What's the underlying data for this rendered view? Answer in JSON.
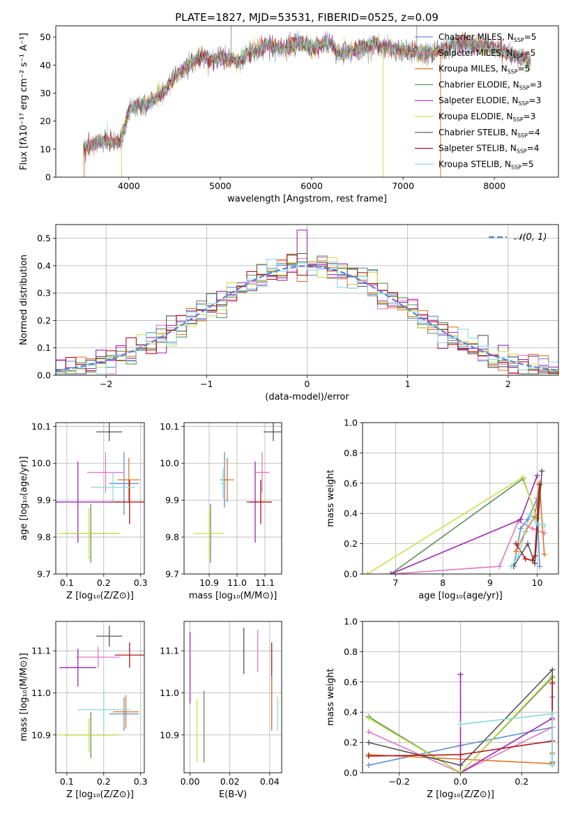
{
  "title": "PLATE=1827, MJD=53531, FIBERID=0525, z=0.09",
  "series": [
    {
      "id": "chabrier_miles",
      "color": "#5b8fd6"
    },
    {
      "id": "salpeter_miles",
      "color": "#e377c2"
    },
    {
      "id": "kroupa_miles",
      "color": "#e0741c"
    },
    {
      "id": "chabrier_elodie",
      "color": "#5e8e5e"
    },
    {
      "id": "salpeter_elodie",
      "color": "#9a27b0"
    },
    {
      "id": "kroupa_elodie",
      "color": "#c8e04a"
    },
    {
      "id": "chabrier_stelib",
      "color": "#555555"
    },
    {
      "id": "salpeter_stelib",
      "color": "#b0141a"
    },
    {
      "id": "kroupa_stelib",
      "color": "#8ad8e0"
    }
  ],
  "chart_data": [
    {
      "id": "spectrum",
      "type": "line",
      "xlabel": "wavelength [Angstrom, rest frame]",
      "ylabel": "Flux [fλ10⁻¹⁷ erg cm⁻² s⁻¹ A⁻¹]",
      "xlim": [
        3200,
        8700
      ],
      "ylim": [
        0,
        54
      ],
      "xticks": [
        "4000",
        "5000",
        "6000",
        "7000",
        "8000"
      ],
      "yticks": [
        "0",
        "10",
        "20",
        "30",
        "40",
        "50"
      ],
      "grid": false,
      "legend_position": "top-right",
      "legend": [
        "Chabrier MILES, N_SSP=5",
        "Salpeter MILES, N_SSP=5",
        "Kroupa MILES, N_SSP=5",
        "Chabrier ELODIE, N_SSP=3",
        "Salpeter ELODIE, N_SSP=3",
        "Kroupa ELODIE, N_SSP=3",
        "Chabrier STELIB, N_SSP=4",
        "Salpeter STELIB, N_SSP=4",
        "Kroupa STELIB, N_SSP=5"
      ],
      "continuum": {
        "x": [
          3500,
          3700,
          3800,
          3900,
          3950,
          4000,
          4100,
          4200,
          4300,
          4400,
          4500,
          4700,
          4800,
          4900,
          5000,
          5100,
          5200,
          5300,
          5400,
          5500,
          5700,
          5850,
          6000,
          6200,
          6300,
          6500,
          6700,
          6900,
          7000,
          7200,
          7400,
          7600,
          7800,
          8000,
          8100,
          8250,
          8400
        ],
        "y": [
          10,
          13,
          13,
          12,
          17,
          24,
          26,
          26,
          28,
          31,
          36,
          41,
          43,
          42,
          43,
          42,
          41,
          44,
          45,
          47,
          46,
          48,
          46,
          48,
          44,
          46,
          47,
          46,
          45,
          44,
          45,
          48,
          47,
          46,
          45,
          43,
          41
        ]
      },
      "dips": [
        {
          "series": "kroupa_miles",
          "x": 3510,
          "y": 0
        },
        {
          "series": "kroupa_elodie",
          "x": 3920,
          "y": 0
        },
        {
          "series": "kroupa_elodie",
          "x": 6780,
          "y": 0
        },
        {
          "series": "kroupa_miles",
          "x": 7410,
          "y": 0
        }
      ],
      "spikes": [
        {
          "x": 5120,
          "y": 54
        },
        {
          "x": 7150,
          "y": 54
        }
      ]
    },
    {
      "id": "residuals",
      "type": "histogram",
      "xlabel": "(data-model)/error",
      "ylabel": "Normed distribution",
      "xlim": [
        -2.5,
        2.5
      ],
      "ylim": [
        0,
        0.55
      ],
      "xticks": [
        "−2",
        "−1",
        "0",
        "1",
        "2"
      ],
      "yticks": [
        "0.0",
        "0.1",
        "0.2",
        "0.3",
        "0.4",
        "0.5"
      ],
      "grid": true,
      "bin_width": 0.1,
      "legend_position": "top-right",
      "legend": [
        "𝒩(0, 1)"
      ],
      "reference_curve": "gaussian N(0,1)",
      "spike": {
        "x": -0.05,
        "y": 0.53
      }
    },
    {
      "id": "age_vs_Z",
      "type": "errorbar",
      "xlabel": "Z [log₁₀(Z/Z⊙)]",
      "ylabel": "age  [log₁₀(age/yr)]",
      "xlim": [
        0.07,
        0.31
      ],
      "ylim": [
        9.7,
        10.11
      ],
      "xticks": [
        "0.1",
        "0.2",
        "0.3"
      ],
      "yticks": [
        "9.7",
        "9.8",
        "9.9",
        "10.0",
        "10.1"
      ],
      "grid": true,
      "points": [
        {
          "series": "chabrier_miles",
          "x": 0.255,
          "xerr": 0.04,
          "y": 9.945,
          "yerr": 0.085
        },
        {
          "series": "salpeter_miles",
          "x": 0.205,
          "xerr": 0.05,
          "y": 9.975,
          "yerr": 0.055
        },
        {
          "series": "kroupa_miles",
          "x": 0.268,
          "xerr": 0.03,
          "y": 9.955,
          "yerr": 0.06
        },
        {
          "series": "chabrier_elodie",
          "x": 0.165,
          "xerr": 0.075,
          "y": 9.81,
          "yerr": 0.08
        },
        {
          "series": "salpeter_elodie",
          "x": 0.13,
          "xerr": 0.11,
          "y": 9.895,
          "yerr": 0.11
        },
        {
          "series": "kroupa_elodie",
          "x": 0.16,
          "xerr": 0.085,
          "y": 9.81,
          "yerr": 0.07
        },
        {
          "series": "chabrier_stelib",
          "x": 0.215,
          "xerr": 0.035,
          "y": 10.085,
          "yerr": 0.025
        },
        {
          "series": "salpeter_stelib",
          "x": 0.27,
          "xerr": 0.05,
          "y": 9.895,
          "yerr": 0.06
        },
        {
          "series": "kroupa_stelib",
          "x": 0.225,
          "xerr": 0.06,
          "y": 9.935,
          "yerr": 0.04
        }
      ]
    },
    {
      "id": "age_vs_mass",
      "type": "errorbar",
      "xlabel": "mass [log₁₀(M/M⊙)]",
      "ylabel": "",
      "xlim": [
        10.81,
        11.16
      ],
      "ylim": [
        9.7,
        10.11
      ],
      "xticks": [
        "10.9",
        "11.0",
        "11.1"
      ],
      "yticks": [
        "9.7",
        "9.8",
        "9.9",
        "10.0",
        "10.1"
      ],
      "grid": true,
      "points": [
        {
          "series": "chabrier_miles",
          "x": 10.955,
          "xerr": 0.005,
          "y": 9.955,
          "yerr": 0.075
        },
        {
          "series": "salpeter_miles",
          "x": 11.09,
          "xerr": 0.025,
          "y": 9.975,
          "yerr": 0.055
        },
        {
          "series": "kroupa_miles",
          "x": 10.965,
          "xerr": 0.025,
          "y": 9.955,
          "yerr": 0.06
        },
        {
          "series": "chabrier_elodie",
          "x": 10.905,
          "xerr": 0.005,
          "y": 9.81,
          "yerr": 0.08
        },
        {
          "series": "salpeter_elodie",
          "x": 11.065,
          "xerr": 0.03,
          "y": 9.895,
          "yerr": 0.11
        },
        {
          "series": "kroupa_elodie",
          "x": 10.9,
          "xerr": 0.055,
          "y": 9.81,
          "yerr": 0.07
        },
        {
          "series": "chabrier_stelib",
          "x": 11.13,
          "xerr": 0.035,
          "y": 10.085,
          "yerr": 0.025
        },
        {
          "series": "salpeter_stelib",
          "x": 11.085,
          "xerr": 0.04,
          "y": 9.895,
          "yerr": 0.06
        },
        {
          "series": "kroupa_stelib",
          "x": 10.95,
          "xerr": 0.01,
          "y": 9.945,
          "yerr": 0.04
        }
      ]
    },
    {
      "id": "weight_vs_age",
      "type": "line",
      "xlabel": "age  [log₁₀(age/yr)]",
      "ylabel": "mass weight",
      "xlim": [
        6.3,
        10.45
      ],
      "ylim": [
        0,
        1.0
      ],
      "xticks": [
        "7",
        "8",
        "9",
        "10"
      ],
      "yticks": [
        "0.0",
        "0.2",
        "0.4",
        "0.6",
        "0.8",
        "1.0"
      ],
      "grid": true,
      "series": [
        {
          "series": "chabrier_miles",
          "x": [
            9.5,
            9.65,
            9.8,
            10.0,
            10.05
          ],
          "y": [
            0.05,
            0.3,
            0.36,
            0.5,
            0.05
          ]
        },
        {
          "series": "salpeter_miles",
          "x": [
            6.9,
            9.2,
            9.6,
            9.9,
            10.15
          ],
          "y": [
            0.0,
            0.05,
            0.35,
            0.3,
            0.27
          ]
        },
        {
          "series": "kroupa_miles",
          "x": [
            9.55,
            9.75,
            9.95,
            10.05,
            10.15
          ],
          "y": [
            0.15,
            0.28,
            0.38,
            0.6,
            0.13
          ]
        },
        {
          "series": "chabrier_elodie",
          "x": [
            6.9,
            9.7,
            10.0
          ],
          "y": [
            0.0,
            0.63,
            0.37
          ]
        },
        {
          "series": "salpeter_elodie",
          "x": [
            6.9,
            9.65,
            10.0
          ],
          "y": [
            0.0,
            0.36,
            0.65
          ]
        },
        {
          "series": "kroupa_elodie",
          "x": [
            6.4,
            9.7,
            10.0
          ],
          "y": [
            0.0,
            0.64,
            0.36
          ]
        },
        {
          "series": "chabrier_stelib",
          "x": [
            9.5,
            9.8,
            9.95,
            10.1
          ],
          "y": [
            0.05,
            0.2,
            0.07,
            0.68
          ]
        },
        {
          "series": "salpeter_stelib",
          "x": [
            9.55,
            9.75,
            9.9,
            9.95,
            10.05
          ],
          "y": [
            0.2,
            0.1,
            0.09,
            0.12,
            0.59
          ]
        },
        {
          "series": "kroupa_stelib",
          "x": [
            9.45,
            9.6,
            9.85,
            10.0,
            10.15
          ],
          "y": [
            0.05,
            0.12,
            0.39,
            0.33,
            0.32
          ]
        }
      ]
    },
    {
      "id": "mass_vs_Z",
      "type": "errorbar",
      "xlabel": "Z [log₁₀(Z/Z⊙)]",
      "ylabel": "mass [log₁₀(M/M⊙)]",
      "xlim": [
        0.07,
        0.31
      ],
      "ylim": [
        10.81,
        11.17
      ],
      "xticks": [
        "0.1",
        "0.2",
        "0.3"
      ],
      "yticks": [
        "10.9",
        "11.0",
        "11.1"
      ],
      "grid": true,
      "points": [
        {
          "series": "chabrier_miles",
          "x": 0.255,
          "xerr": 0.04,
          "y": 10.95,
          "yerr": 0.04
        },
        {
          "series": "salpeter_miles",
          "x": 0.185,
          "xerr": 0.06,
          "y": 11.085,
          "yerr": 0.025
        },
        {
          "series": "kroupa_miles",
          "x": 0.26,
          "xerr": 0.035,
          "y": 10.955,
          "yerr": 0.04
        },
        {
          "series": "chabrier_elodie",
          "x": 0.165,
          "xerr": 0.07,
          "y": 10.9,
          "yerr": 0.055
        },
        {
          "series": "salpeter_elodie",
          "x": 0.13,
          "xerr": 0.05,
          "y": 11.06,
          "yerr": 0.045
        },
        {
          "series": "kroupa_elodie",
          "x": 0.16,
          "xerr": 0.085,
          "y": 10.9,
          "yerr": 0.04
        },
        {
          "series": "chabrier_stelib",
          "x": 0.215,
          "xerr": 0.035,
          "y": 11.135,
          "yerr": 0.025
        },
        {
          "series": "salpeter_stelib",
          "x": 0.27,
          "xerr": 0.04,
          "y": 11.09,
          "yerr": 0.03
        },
        {
          "series": "kroupa_stelib",
          "x": 0.2,
          "xerr": 0.07,
          "y": 10.96,
          "yerr": 0.05
        }
      ]
    },
    {
      "id": "mass_vs_ebv",
      "type": "errorbar",
      "xlabel": "E(B-V)",
      "ylabel": "",
      "xlim": [
        -0.003,
        0.046
      ],
      "ylim": [
        10.81,
        11.17
      ],
      "xticks": [
        "0.00",
        "0.02",
        "0.04"
      ],
      "yticks": [
        "10.9",
        "11.0",
        "11.1"
      ],
      "grid": true,
      "points": [
        {
          "series": "chabrier_miles",
          "x": 0.041,
          "y": 10.98,
          "yerr": 0.06
        },
        {
          "series": "salpeter_miles",
          "x": 0.034,
          "y": 11.1,
          "yerr": 0.05
        },
        {
          "series": "kroupa_miles",
          "x": 0.041,
          "y": 10.975,
          "yerr": 0.065
        },
        {
          "series": "chabrier_elodie",
          "x": 0.007,
          "y": 10.92,
          "yerr": 0.085
        },
        {
          "series": "salpeter_elodie",
          "x": 0.0,
          "y": 11.06,
          "yerr": 0.085
        },
        {
          "series": "kroupa_elodie",
          "x": 0.0035,
          "y": 10.91,
          "yerr": 0.075
        },
        {
          "series": "chabrier_stelib",
          "x": 0.027,
          "y": 11.1,
          "yerr": 0.055
        },
        {
          "series": "salpeter_stelib",
          "x": 0.041,
          "y": 11.08,
          "yerr": 0.04
        },
        {
          "series": "kroupa_stelib",
          "x": 0.044,
          "y": 10.95,
          "yerr": 0.04
        }
      ]
    },
    {
      "id": "weight_vs_Z",
      "type": "line",
      "xlabel": "Z [log₁₀(Z/Z⊙)]",
      "ylabel": "mass weight",
      "xlim": [
        -0.32,
        0.32
      ],
      "ylim": [
        0,
        1.0
      ],
      "xticks": [
        "−0.2",
        "0.0",
        "0.2"
      ],
      "yticks": [
        "0.0",
        "0.2",
        "0.4",
        "0.6",
        "0.8",
        "1.0"
      ],
      "grid": true,
      "series": [
        {
          "series": "chabrier_miles",
          "x": [
            -0.3,
            0.0,
            0.3,
            0.3,
            0.3
          ],
          "y": [
            0.05,
            0.18,
            0.3,
            0.05,
            0.5
          ]
        },
        {
          "series": "salpeter_miles",
          "x": [
            -0.3,
            0.0,
            0.3,
            0.3
          ],
          "y": [
            0.27,
            0.0,
            0.3,
            0.35
          ]
        },
        {
          "series": "kroupa_miles",
          "x": [
            -0.3,
            0.0,
            0.3,
            0.3,
            0.3
          ],
          "y": [
            0.12,
            0.09,
            0.06,
            0.6,
            0.13
          ]
        },
        {
          "series": "chabrier_elodie",
          "x": [
            -0.3,
            0.0,
            0.3
          ],
          "y": [
            0.37,
            0.0,
            0.63
          ]
        },
        {
          "series": "salpeter_elodie",
          "x": [
            0.0,
            0.0,
            0.3
          ],
          "y": [
            0.65,
            0.0,
            0.36
          ]
        },
        {
          "series": "kroupa_elodie",
          "x": [
            -0.3,
            0.0,
            0.3
          ],
          "y": [
            0.36,
            0.0,
            0.64
          ]
        },
        {
          "series": "chabrier_stelib",
          "x": [
            -0.3,
            0.0,
            0.3,
            0.3
          ],
          "y": [
            0.2,
            0.05,
            0.68,
            0.07
          ]
        },
        {
          "series": "salpeter_stelib",
          "x": [
            -0.3,
            0.0,
            0.3,
            0.3
          ],
          "y": [
            0.11,
            0.12,
            0.21,
            0.59
          ]
        },
        {
          "series": "kroupa_stelib",
          "x": [
            0.0,
            0.3,
            0.3,
            0.3
          ],
          "y": [
            0.32,
            0.39,
            0.05,
            0.12
          ]
        }
      ]
    }
  ]
}
